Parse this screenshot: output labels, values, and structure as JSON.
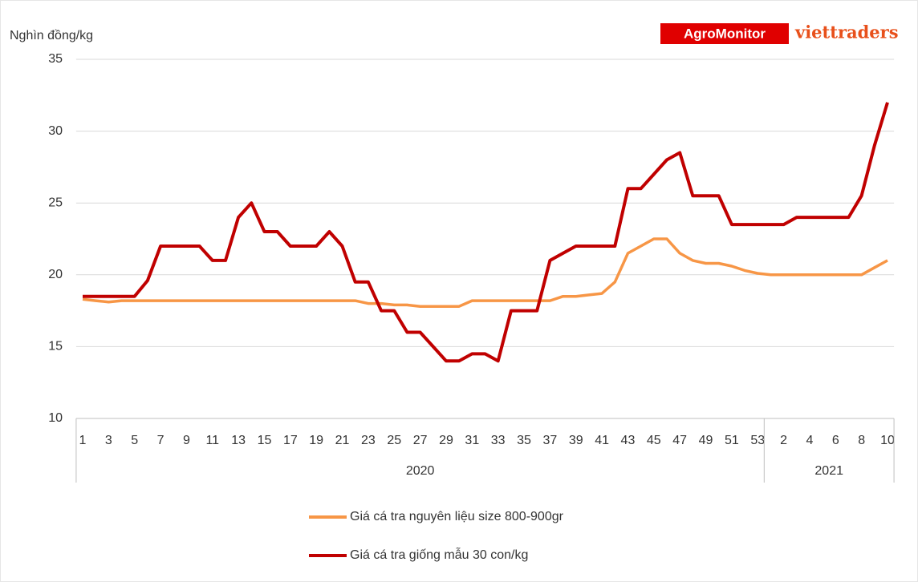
{
  "chart_data": {
    "type": "line",
    "y_label": "Nghìn  đồng/kg",
    "logos": [
      "AgroMonitor",
      "viettraders"
    ],
    "categories": [
      "1",
      null,
      "3",
      null,
      "5",
      null,
      "7",
      null,
      "9",
      null,
      "11",
      null,
      "13",
      null,
      "15",
      null,
      "17",
      null,
      "19",
      null,
      "21",
      null,
      "23",
      null,
      "25",
      null,
      "27",
      null,
      "29",
      null,
      "31",
      null,
      "33",
      null,
      "35",
      null,
      "37",
      null,
      "39",
      null,
      "41",
      null,
      "43",
      null,
      "45",
      null,
      "47",
      null,
      "49",
      null,
      "51",
      null,
      "53",
      null,
      "2",
      null,
      "4",
      null,
      "6",
      null,
      "8",
      null,
      "10"
    ],
    "groups": [
      {
        "label": "2020",
        "count": 53
      },
      {
        "label": "2021",
        "count": 10
      }
    ],
    "series": [
      {
        "name": "Giá cá tra nguyên liệu size 800-900gr",
        "color": "#f79646",
        "values": [
          18.3,
          18.2,
          18.1,
          18.2,
          18.2,
          18.2,
          18.2,
          18.2,
          18.2,
          18.2,
          18.2,
          18.2,
          18.2,
          18.2,
          18.2,
          18.2,
          18.2,
          18.2,
          18.2,
          18.2,
          18.2,
          18.2,
          18.0,
          18.0,
          17.9,
          17.9,
          17.8,
          17.8,
          17.8,
          17.8,
          18.2,
          18.2,
          18.2,
          18.2,
          18.2,
          18.2,
          18.2,
          18.5,
          18.5,
          18.6,
          18.7,
          19.5,
          21.5,
          22,
          22.5,
          22.5,
          21.5,
          21,
          20.8,
          20.8,
          20.6,
          20.3,
          20.1,
          20,
          20,
          20,
          20,
          20,
          20,
          20,
          20,
          20.5,
          21
        ]
      },
      {
        "name": "Giá cá tra giống mẫu 30 con/kg",
        "color": "#c00000",
        "values": [
          18.5,
          18.5,
          18.5,
          18.5,
          18.5,
          19.6,
          22,
          22,
          22,
          22,
          21,
          21,
          24,
          25,
          23,
          23,
          22,
          22,
          22,
          23,
          22,
          19.5,
          19.5,
          17.5,
          17.5,
          16,
          16,
          15,
          14,
          14,
          14.5,
          14.5,
          14,
          17.5,
          17.5,
          17.5,
          21,
          21.5,
          22,
          22,
          22,
          22,
          26,
          26,
          27,
          28,
          28.5,
          25.5,
          25.5,
          25.5,
          23.5,
          23.5,
          23.5,
          23.5,
          23.5,
          24,
          24,
          24,
          24,
          24,
          25.5,
          29,
          32
        ]
      }
    ],
    "ylim": [
      10,
      35
    ],
    "yticks": [
      10,
      15,
      20,
      25,
      30,
      35
    ],
    "grid": true
  }
}
